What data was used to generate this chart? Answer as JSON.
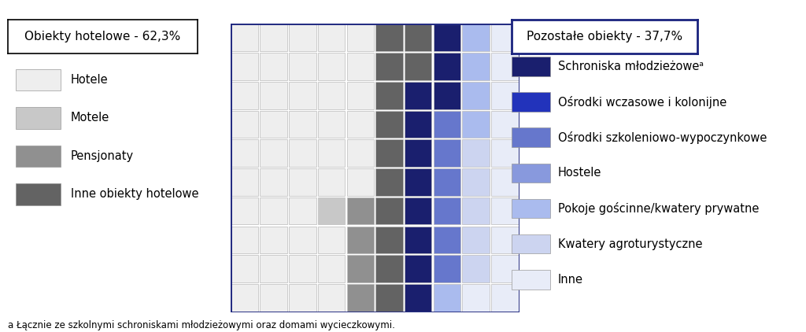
{
  "title_left": "Obiekty hotelowe - 62,3%",
  "title_right": "Pozostałe obiekty - 37,7%",
  "footnote": "a Łącznie ze szkolnymi schroniskami młodzieżowymi oraz domami wycieczkowymi.",
  "grid_rows": 10,
  "grid_cols": 10,
  "left_legend": [
    {
      "label": "Hotele",
      "color": "#eeeeee"
    },
    {
      "label": "Motele",
      "color": "#c8c8c8"
    },
    {
      "label": "Pensjonaty",
      "color": "#909090"
    },
    {
      "label": "Inne obiekty hotelowe",
      "color": "#636363"
    }
  ],
  "right_legend": [
    {
      "label": "Schroniska młodzieżoweᵃ",
      "color": "#1a1f6e"
    },
    {
      "label": "Ośrodki wczasowe i kolonijne",
      "color": "#2233bb"
    },
    {
      "label": "Ośrodki szkoleniowo-wypoczynkowe",
      "color": "#6677cc"
    },
    {
      "label": "Hostele",
      "color": "#8899dd"
    },
    {
      "label": "Pokoje gościnne/kwatery prywatne",
      "color": "#aabbee"
    },
    {
      "label": "Kwatery agroturystyczne",
      "color": "#ccd4f0"
    },
    {
      "label": "Inne",
      "color": "#e8ecf8"
    }
  ],
  "cell_colors": [
    [
      "W",
      "W",
      "W",
      "W",
      "W",
      "D",
      "D",
      "NB",
      "LB",
      "VL"
    ],
    [
      "W",
      "W",
      "W",
      "W",
      "W",
      "D",
      "D",
      "NB",
      "LB",
      "VL"
    ],
    [
      "W",
      "W",
      "W",
      "W",
      "W",
      "D",
      "NB",
      "NB",
      "LB",
      "VL"
    ],
    [
      "W",
      "W",
      "W",
      "W",
      "W",
      "D",
      "NB",
      "MB",
      "LB",
      "VL"
    ],
    [
      "W",
      "W",
      "W",
      "W",
      "W",
      "D",
      "NB",
      "MB",
      "AL",
      "VL"
    ],
    [
      "W",
      "W",
      "W",
      "W",
      "W",
      "D",
      "NB",
      "MB",
      "AL",
      "VL"
    ],
    [
      "W",
      "W",
      "W",
      "LG",
      "MG",
      "D",
      "NB",
      "MB",
      "AL",
      "VL"
    ],
    [
      "W",
      "W",
      "W",
      "W",
      "MG",
      "D",
      "NB",
      "MB",
      "AL",
      "VL"
    ],
    [
      "W",
      "W",
      "W",
      "W",
      "MG",
      "D",
      "NB",
      "MB",
      "AL",
      "VL"
    ],
    [
      "W",
      "W",
      "W",
      "W",
      "MG",
      "D",
      "NB",
      "LB",
      "VL",
      "VL"
    ]
  ],
  "color_map": {
    "W": "#eeeeee",
    "LG": "#c8c8c8",
    "MG": "#909090",
    "D": "#636363",
    "NB": "#1a1f6e",
    "BB": "#2233bb",
    "MB": "#6677cc",
    "LB": "#aabbee",
    "AL": "#ccd4f0",
    "VL": "#e8ecf8"
  },
  "border_color": "#1a237e",
  "grid_line_color": "#bbbbbb",
  "background": "#ffffff"
}
